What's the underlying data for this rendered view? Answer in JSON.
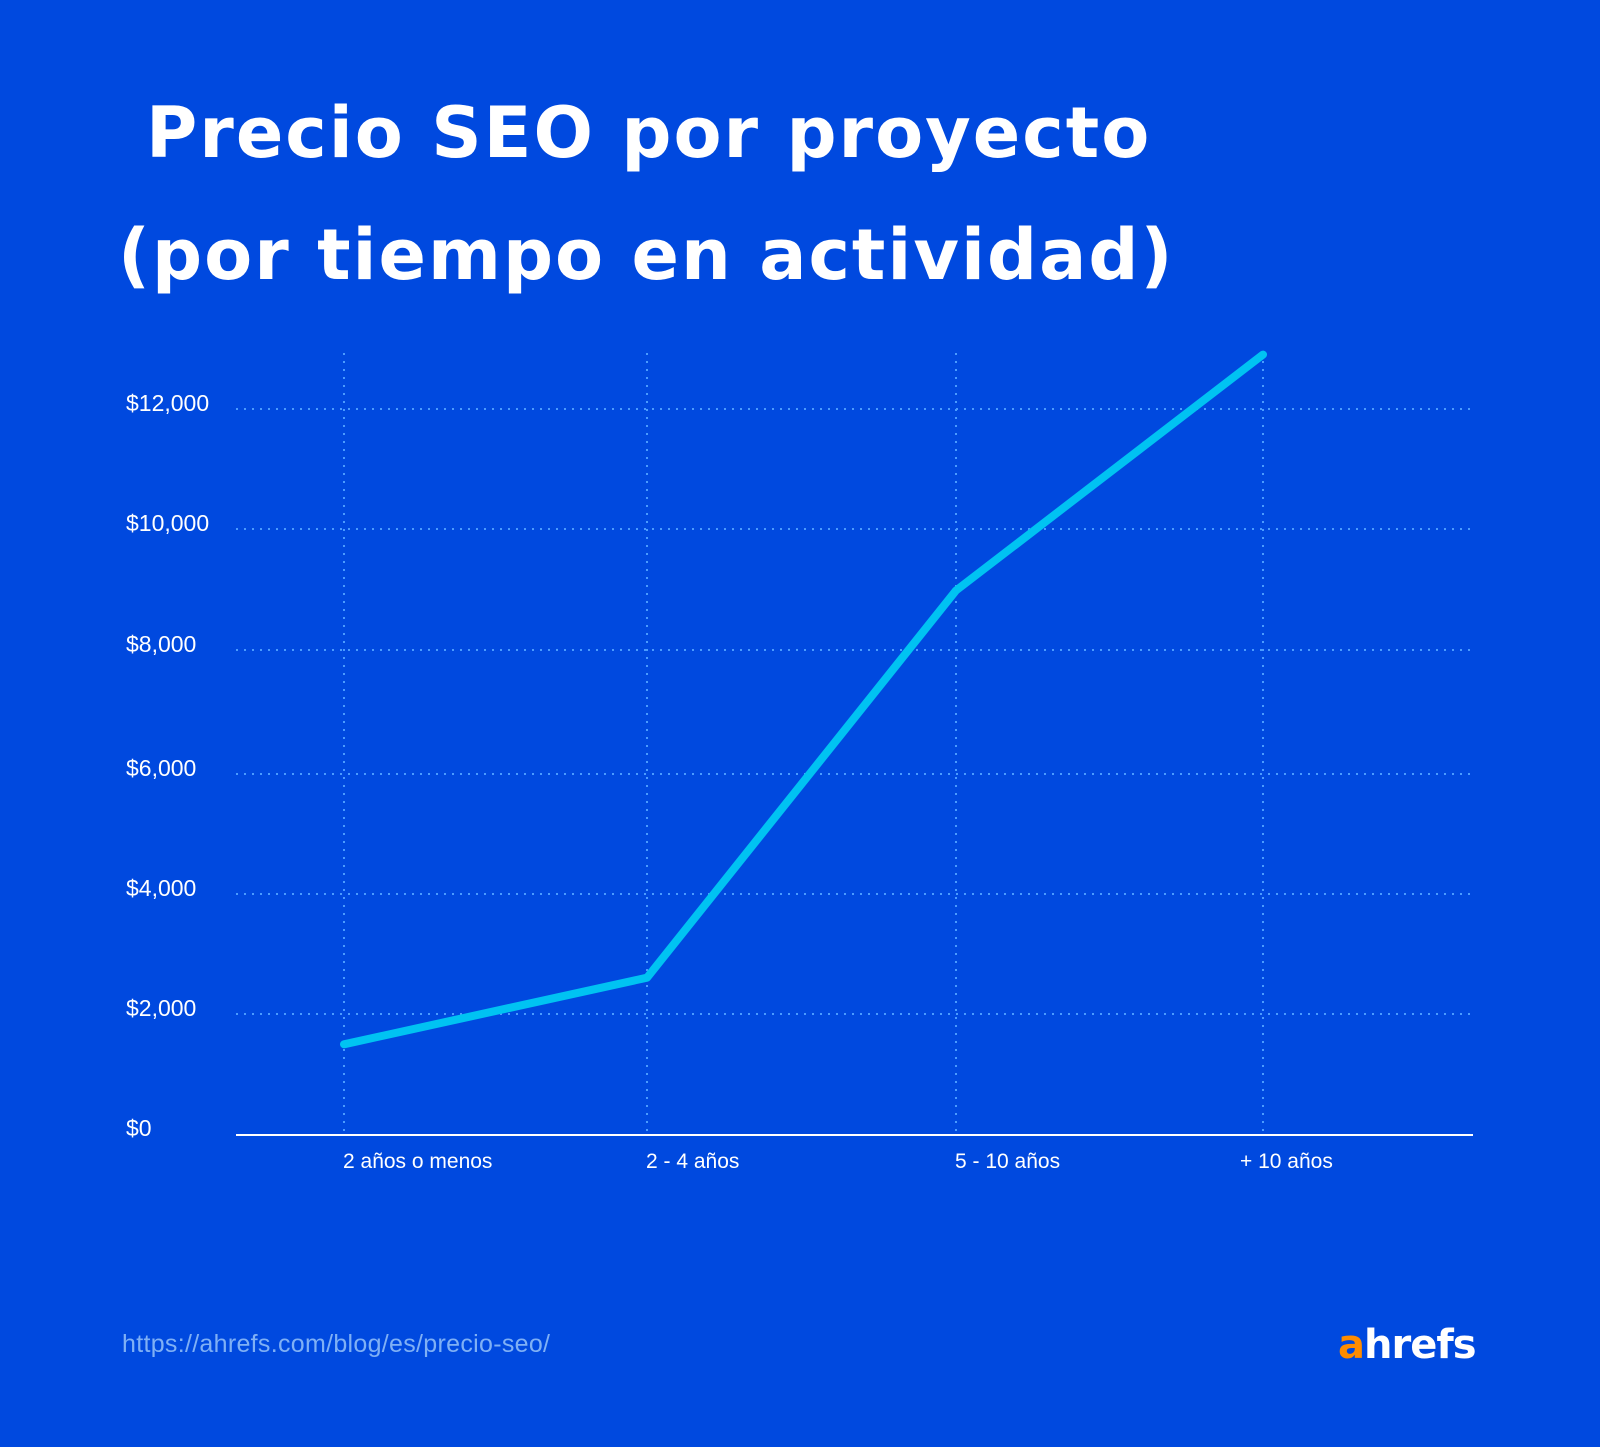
{
  "title": {
    "line1": "Precio SEO por proyecto",
    "line2": "(por tiempo en actividad)"
  },
  "colors": {
    "background": "#0049DF",
    "line": "#00C3F2",
    "grid": "#4A9BFF",
    "axis": "#FFFFFF",
    "text": "#FFFFFF",
    "source_text": "#7FB0F5",
    "logo_accent": "#FF8C00"
  },
  "yaxis": {
    "ticks": [
      "$0",
      "$2,000",
      "$4,000",
      "$6,000",
      "$8,000",
      "$10,000",
      "$12,000"
    ]
  },
  "xaxis": {
    "ticks": [
      "2 años o menos",
      "2 - 4 años",
      "5 - 10 años",
      "+ 10 años"
    ]
  },
  "footer": {
    "source": "https://ahrefs.com/blog/es/precio-seo/",
    "logo_accent": "a",
    "logo_rest": "hrefs"
  },
  "chart_data": {
    "type": "line",
    "title": "Precio SEO por proyecto (por tiempo en actividad)",
    "xlabel": "",
    "ylabel": "",
    "categories": [
      "2 años o menos",
      "2 - 4 años",
      "5 - 10 años",
      "+ 10 años"
    ],
    "series": [
      {
        "name": "Precio SEO por proyecto",
        "values": [
          1500,
          2600,
          9000,
          12900
        ]
      }
    ],
    "ylim": [
      0,
      12000
    ],
    "yticks": [
      0,
      2000,
      4000,
      6000,
      8000,
      10000,
      12000
    ],
    "ytick_labels": [
      "$0",
      "$2,000",
      "$4,000",
      "$6,000",
      "$8,000",
      "$10,000",
      "$12,000"
    ],
    "grid": true,
    "legend": "none"
  }
}
